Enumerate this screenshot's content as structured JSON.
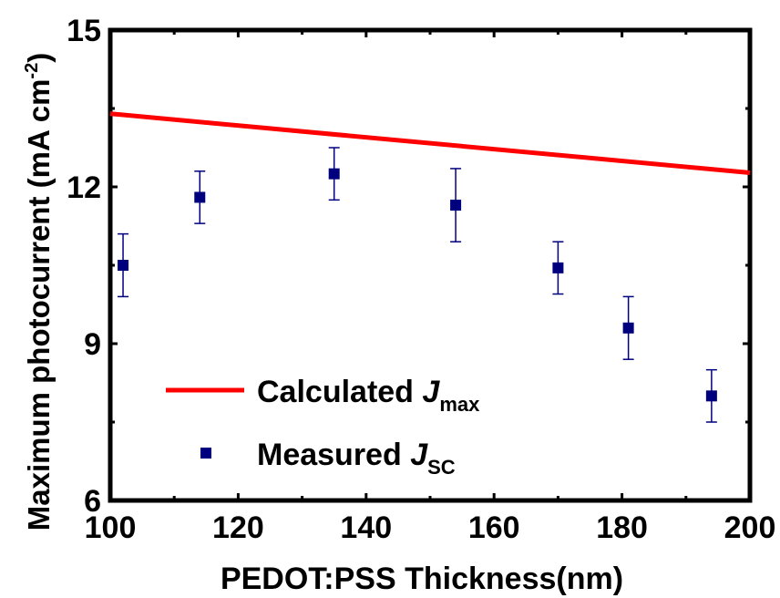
{
  "chart_data": {
    "type": "scatter",
    "xlabel": "PEDOT:PSS Thickness(nm)",
    "ylabel": {
      "main": "Maximum photocurrent (mA cm",
      "sup": "-2",
      "end": ")"
    },
    "xlim": [
      100,
      200
    ],
    "ylim": [
      6,
      15
    ],
    "xticks": [
      100,
      120,
      140,
      160,
      180,
      200
    ],
    "yticks": [
      6,
      9,
      12,
      15
    ],
    "grid": false,
    "legend_position": "bottom-left",
    "series": [
      {
        "kind": "line",
        "color": "#ff0000",
        "legend": {
          "text": "Calculated ",
          "italic": "J",
          "sub": "max"
        },
        "x": [
          100,
          200
        ],
        "y": [
          13.4,
          12.27
        ]
      },
      {
        "kind": "scatter",
        "color": "#00007f",
        "marker": "square",
        "legend": {
          "text": "Measured ",
          "italic": "J",
          "sub": "SC"
        },
        "x": [
          102,
          114,
          135,
          154,
          170,
          181,
          194
        ],
        "y": [
          10.5,
          11.8,
          12.25,
          11.65,
          10.45,
          9.3,
          8.0
        ],
        "err": [
          0.6,
          0.5,
          0.5,
          0.7,
          0.5,
          0.6,
          0.5
        ]
      }
    ]
  }
}
